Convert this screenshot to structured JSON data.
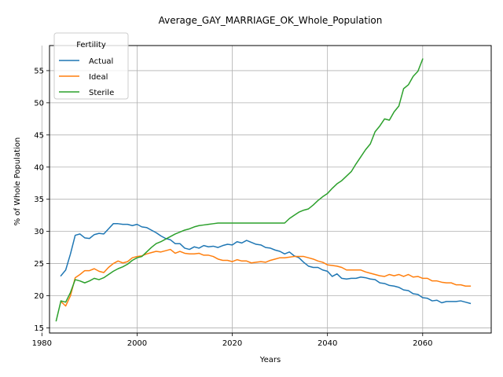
{
  "chart_data": {
    "type": "line",
    "title": "Average_GAY_MARRIAGE_OK_Whole_Population",
    "xlabel": "Years",
    "ylabel": "% of Whole Population",
    "xlim": [
      1981.6,
      2074.4
    ],
    "ylim": [
      14.2,
      58.9
    ],
    "xticks": [
      1980,
      2000,
      2020,
      2040,
      2060
    ],
    "yticks": [
      15,
      20,
      25,
      30,
      35,
      40,
      45,
      50,
      55
    ],
    "grid": true,
    "legend": {
      "title": "Fertility",
      "placement": "top-left"
    },
    "series": [
      {
        "name": "Actual",
        "color": "#1f77b4",
        "x": [
          1984,
          1985,
          1986,
          1987,
          1988,
          1989,
          1990,
          1991,
          1992,
          1993,
          1994,
          1995,
          1996,
          1997,
          1998,
          1999,
          2000,
          2001,
          2002,
          2003,
          2004,
          2005,
          2006,
          2007,
          2008,
          2009,
          2010,
          2011,
          2012,
          2013,
          2014,
          2015,
          2016,
          2017,
          2018,
          2019,
          2020,
          2021,
          2022,
          2023,
          2024,
          2025,
          2026,
          2027,
          2028,
          2029,
          2030,
          2031,
          2032,
          2033,
          2034,
          2035,
          2036,
          2037,
          2038,
          2039,
          2040,
          2041,
          2042,
          2043,
          2044,
          2045,
          2046,
          2047,
          2048,
          2049,
          2050,
          2051,
          2052,
          2053,
          2054,
          2055,
          2056,
          2057,
          2058,
          2059,
          2060,
          2061,
          2062,
          2063,
          2064,
          2065,
          2066,
          2067,
          2068,
          2069,
          2070
        ],
        "y": [
          23.1,
          24.0,
          26.5,
          29.4,
          29.6,
          29.0,
          28.9,
          29.5,
          29.7,
          29.6,
          30.4,
          31.2,
          31.2,
          31.1,
          31.1,
          30.9,
          31.1,
          30.7,
          30.6,
          30.2,
          29.8,
          29.3,
          28.9,
          28.7,
          28.1,
          28.1,
          27.4,
          27.2,
          27.6,
          27.4,
          27.8,
          27.6,
          27.7,
          27.5,
          27.8,
          28.0,
          27.9,
          28.4,
          28.2,
          28.6,
          28.3,
          28.0,
          27.9,
          27.5,
          27.4,
          27.1,
          26.9,
          26.5,
          26.8,
          26.2,
          25.9,
          25.2,
          24.6,
          24.4,
          24.4,
          24.0,
          23.8,
          23.0,
          23.4,
          22.7,
          22.6,
          22.7,
          22.7,
          22.9,
          22.8,
          22.6,
          22.5,
          22.0,
          21.9,
          21.6,
          21.5,
          21.3,
          20.9,
          20.8,
          20.3,
          20.2,
          19.7,
          19.6,
          19.2,
          19.3,
          18.9,
          19.1,
          19.1,
          19.1,
          19.2,
          19.0,
          18.8
        ]
      },
      {
        "name": "Ideal",
        "color": "#ff7f0e",
        "x": [
          1984,
          1985,
          1986,
          1987,
          1988,
          1989,
          1990,
          1991,
          1992,
          1993,
          1994,
          1995,
          1996,
          1997,
          1998,
          1999,
          2000,
          2001,
          2002,
          2003,
          2004,
          2005,
          2006,
          2007,
          2008,
          2009,
          2010,
          2011,
          2012,
          2013,
          2014,
          2015,
          2016,
          2017,
          2018,
          2019,
          2020,
          2021,
          2022,
          2023,
          2024,
          2025,
          2026,
          2027,
          2028,
          2029,
          2030,
          2031,
          2032,
          2033,
          2034,
          2035,
          2036,
          2037,
          2038,
          2039,
          2040,
          2041,
          2042,
          2043,
          2044,
          2045,
          2046,
          2047,
          2048,
          2049,
          2050,
          2051,
          2052,
          2053,
          2054,
          2055,
          2056,
          2057,
          2058,
          2059,
          2060,
          2061,
          2062,
          2063,
          2064,
          2065,
          2066,
          2067,
          2068,
          2069,
          2070
        ],
        "y": [
          19.1,
          18.4,
          20.0,
          22.8,
          23.3,
          23.9,
          23.9,
          24.2,
          23.8,
          23.6,
          24.4,
          25.0,
          25.4,
          25.1,
          25.3,
          25.9,
          26.1,
          26.2,
          26.5,
          26.7,
          26.9,
          26.8,
          27.0,
          27.2,
          26.6,
          26.9,
          26.6,
          26.5,
          26.5,
          26.6,
          26.3,
          26.3,
          26.1,
          25.7,
          25.5,
          25.5,
          25.3,
          25.6,
          25.4,
          25.4,
          25.1,
          25.2,
          25.3,
          25.2,
          25.5,
          25.7,
          25.9,
          25.9,
          26.0,
          26.1,
          26.1,
          26.1,
          25.9,
          25.7,
          25.4,
          25.2,
          24.8,
          24.7,
          24.6,
          24.4,
          24.0,
          24.0,
          24.0,
          24.0,
          23.7,
          23.5,
          23.3,
          23.1,
          23.0,
          23.3,
          23.1,
          23.3,
          23.0,
          23.3,
          22.9,
          23.0,
          22.7,
          22.7,
          22.3,
          22.3,
          22.1,
          22.0,
          22.0,
          21.7,
          21.7,
          21.5,
          21.5
        ]
      },
      {
        "name": "Sterile",
        "color": "#2ca02c",
        "x": [
          1983,
          1984,
          1985,
          1986,
          1987,
          1988,
          1989,
          1990,
          1991,
          1992,
          1993,
          1994,
          1995,
          1996,
          1997,
          1998,
          1999,
          2000,
          2001,
          2002,
          2003,
          2004,
          2005,
          2006,
          2007,
          2008,
          2009,
          2010,
          2011,
          2012,
          2013,
          2014,
          2015,
          2016,
          2017,
          2018,
          2019,
          2020,
          2021,
          2022,
          2023,
          2024,
          2025,
          2026,
          2027,
          2028,
          2029,
          2030,
          2031,
          2032,
          2033,
          2034,
          2035,
          2036,
          2037,
          2038,
          2039,
          2040,
          2041,
          2042,
          2043,
          2044,
          2045,
          2046,
          2047,
          2048,
          2049,
          2050,
          2051,
          2052,
          2053,
          2054,
          2055,
          2056,
          2057,
          2058,
          2059,
          2060
        ],
        "y": [
          16.1,
          19.2,
          19.0,
          20.5,
          22.5,
          22.3,
          22.0,
          22.3,
          22.7,
          22.5,
          22.8,
          23.3,
          23.8,
          24.2,
          24.5,
          24.9,
          25.5,
          25.9,
          26.1,
          26.8,
          27.5,
          28.1,
          28.4,
          28.8,
          29.2,
          29.6,
          29.9,
          30.2,
          30.4,
          30.7,
          30.9,
          31.0,
          31.1,
          31.2,
          31.3,
          31.3,
          31.3,
          31.3,
          31.3,
          31.3,
          31.3,
          31.3,
          31.3,
          31.3,
          31.3,
          31.3,
          31.3,
          31.3,
          31.3,
          32.0,
          32.5,
          33.0,
          33.3,
          33.5,
          34.1,
          34.8,
          35.4,
          35.9,
          36.7,
          37.4,
          37.9,
          38.6,
          39.3,
          40.5,
          41.6,
          42.7,
          43.6,
          45.5,
          46.4,
          47.5,
          47.3,
          48.6,
          49.5,
          52.2,
          52.8,
          54.1,
          54.9,
          56.8
        ]
      }
    ]
  }
}
